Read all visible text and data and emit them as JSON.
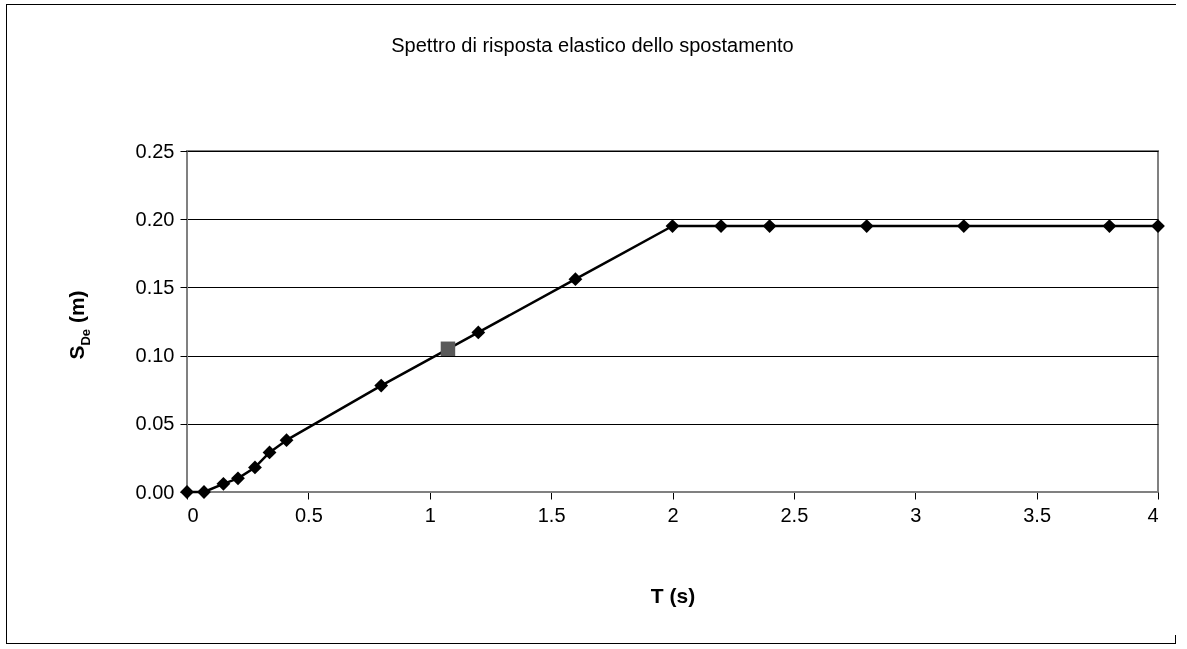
{
  "chart_data": {
    "type": "line",
    "title": "Spettro di risposta elastico dello spostamento",
    "xlabel": "T (s)",
    "ylabel": "S$_{De}$ (m)",
    "series": [
      {
        "color": "#000000",
        "marker": "diamond",
        "x": [
          0,
          0.07,
          0.15,
          0.21,
          0.28,
          0.34,
          0.41,
          0.8,
          1.2,
          1.6,
          2,
          2.2,
          2.4,
          2.8,
          3.2,
          3.8,
          4
        ],
        "values": [
          0,
          0,
          0.006,
          0.01,
          0.018,
          0.029,
          0.038,
          0.078,
          0.117,
          0.156,
          0.195,
          0.195,
          0.195,
          0.195,
          0.195,
          0.195,
          0.195
        ]
      },
      {
        "type": "scatter",
        "color": "#595959",
        "marker": "square",
        "x": [
          1.075
        ],
        "values": [
          0.105
        ]
      }
    ],
    "xlim": [
      0,
      4
    ],
    "xticks": [
      0,
      0.5,
      1,
      1.5,
      2,
      2.5,
      3,
      3.5,
      4
    ],
    "ylim": [
      0,
      0.25
    ],
    "yticks": [
      {
        "value": 0,
        "label": "0.00"
      },
      {
        "value": 0.05,
        "label": "0.05"
      },
      {
        "value": 0.1,
        "label": "0.10"
      },
      {
        "value": 0.15,
        "label": "0.15"
      },
      {
        "value": 0.2,
        "label": "0.20"
      },
      {
        "value": 0.25,
        "label": "0.25"
      }
    ],
    "grid": "y",
    "line_style": "solid"
  }
}
